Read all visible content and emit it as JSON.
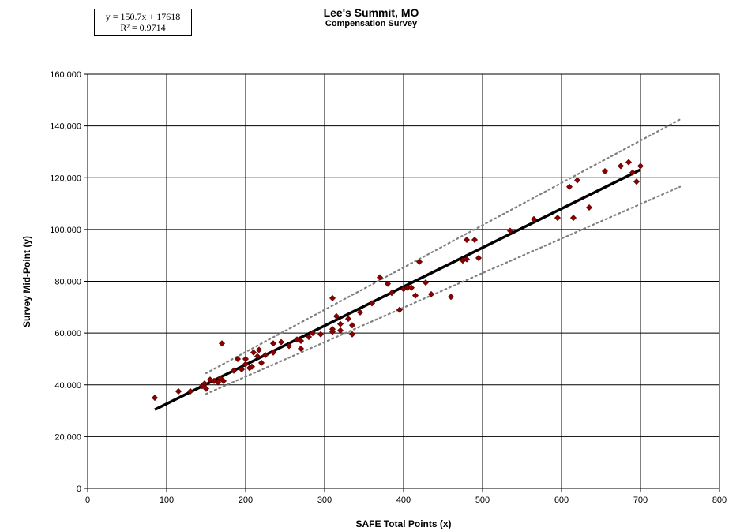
{
  "chart_data": {
    "type": "scatter",
    "title": "Lee's Summit, MO",
    "subtitle": "Compensation Survey",
    "xlabel": "SAFE Total Points (x)",
    "ylabel": "Survey  Mid-Point (y)",
    "xlim": [
      0,
      800
    ],
    "ylim": [
      0,
      160000
    ],
    "x_ticks": [
      0,
      100,
      200,
      300,
      400,
      500,
      600,
      700,
      800
    ],
    "y_ticks": [
      0,
      20000,
      40000,
      60000,
      80000,
      100000,
      120000,
      140000,
      160000
    ],
    "x_tick_labels": [
      "0",
      "100",
      "200",
      "300",
      "400",
      "500",
      "600",
      "700",
      "800"
    ],
    "y_tick_labels": [
      "0",
      "20,000",
      "40,000",
      "60,000",
      "80,000",
      "100,000",
      "120,000",
      "140,000",
      "160,000"
    ],
    "grid": true,
    "equation": "y = 150.7x + 17618",
    "r_squared": "R² = 0.9714",
    "marker_color": "#8b0000",
    "trendline": {
      "slope": 150.7,
      "intercept": 17618,
      "x_range": [
        85,
        700
      ],
      "color": "#000000"
    },
    "upper_band": {
      "x_range": [
        150,
        750
      ],
      "y_range": [
        44500,
        142500
      ],
      "color": "#808080"
    },
    "lower_band": {
      "x_range": [
        150,
        750
      ],
      "y_range": [
        36500,
        116500
      ],
      "color": "#808080"
    },
    "points": [
      [
        85,
        35000
      ],
      [
        115,
        37500
      ],
      [
        130,
        37500
      ],
      [
        145,
        39500
      ],
      [
        148,
        40500
      ],
      [
        150,
        38500
      ],
      [
        155,
        42000
      ],
      [
        160,
        41500
      ],
      [
        165,
        41000
      ],
      [
        168,
        42500
      ],
      [
        170,
        56000
      ],
      [
        172,
        41500
      ],
      [
        185,
        45500
      ],
      [
        190,
        50000
      ],
      [
        195,
        46000
      ],
      [
        200,
        48000
      ],
      [
        200,
        50000
      ],
      [
        205,
        46500
      ],
      [
        208,
        47000
      ],
      [
        210,
        52500
      ],
      [
        215,
        51000
      ],
      [
        217,
        53500
      ],
      [
        220,
        48500
      ],
      [
        225,
        51500
      ],
      [
        235,
        52500
      ],
      [
        235,
        56000
      ],
      [
        245,
        56500
      ],
      [
        255,
        55000
      ],
      [
        265,
        57500
      ],
      [
        270,
        54000
      ],
      [
        270,
        57000
      ],
      [
        280,
        58500
      ],
      [
        285,
        60000
      ],
      [
        295,
        59500
      ],
      [
        310,
        73500
      ],
      [
        310,
        61500
      ],
      [
        310,
        60500
      ],
      [
        315,
        66500
      ],
      [
        320,
        63500
      ],
      [
        320,
        61000
      ],
      [
        330,
        65500
      ],
      [
        335,
        59500
      ],
      [
        335,
        63000
      ],
      [
        345,
        68000
      ],
      [
        360,
        71500
      ],
      [
        370,
        81500
      ],
      [
        380,
        79000
      ],
      [
        385,
        75500
      ],
      [
        395,
        69000
      ],
      [
        400,
        77000
      ],
      [
        405,
        77500
      ],
      [
        410,
        77500
      ],
      [
        415,
        74500
      ],
      [
        420,
        87500
      ],
      [
        428,
        79500
      ],
      [
        435,
        75000
      ],
      [
        460,
        74000
      ],
      [
        475,
        88000
      ],
      [
        480,
        88500
      ],
      [
        480,
        96000
      ],
      [
        490,
        96000
      ],
      [
        495,
        89000
      ],
      [
        535,
        99500
      ],
      [
        565,
        104000
      ],
      [
        595,
        104500
      ],
      [
        610,
        116500
      ],
      [
        615,
        104500
      ],
      [
        620,
        119000
      ],
      [
        635,
        108500
      ],
      [
        655,
        122500
      ],
      [
        675,
        124500
      ],
      [
        685,
        126000
      ],
      [
        690,
        122000
      ],
      [
        695,
        118500
      ],
      [
        700,
        124500
      ]
    ]
  }
}
